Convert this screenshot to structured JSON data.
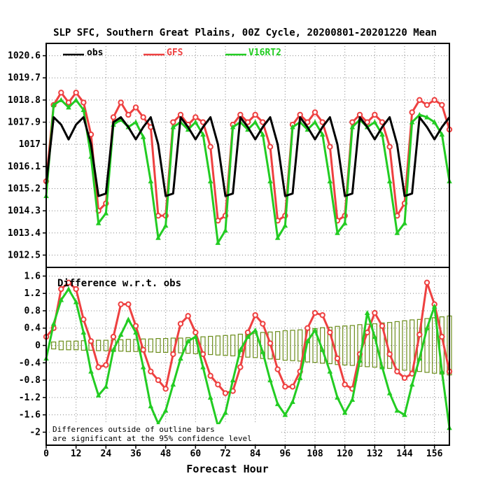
{
  "chart_data": {
    "title": "SLP SFC, Southern Great Plains, 00Z Cycle, 20200801-20201220 Mean",
    "xlabel": "Forecast Hour",
    "x_ticks": [
      0,
      12,
      24,
      36,
      48,
      60,
      72,
      84,
      96,
      108,
      120,
      132,
      144,
      156
    ],
    "x_range": [
      0,
      162
    ],
    "panels": [
      {
        "type": "line",
        "ylim": [
          1012.0,
          1021.1
        ],
        "y_ticks": [
          1012.5,
          1013.4,
          1014.3,
          1015.2,
          1016.1,
          1017,
          1017.9,
          1018.8,
          1019.7,
          1020.6
        ],
        "legend": [
          "obs",
          "GFS",
          "V16RT2"
        ],
        "x": [
          0,
          3,
          6,
          9,
          12,
          15,
          18,
          21,
          24,
          27,
          30,
          33,
          36,
          39,
          42,
          45,
          48,
          51,
          54,
          57,
          60,
          63,
          66,
          69,
          72,
          75,
          78,
          81,
          84,
          87,
          90,
          93,
          96,
          99,
          102,
          105,
          108,
          111,
          114,
          117,
          120,
          123,
          126,
          129,
          132,
          135,
          138,
          141,
          144,
          147,
          150,
          153,
          156,
          159,
          162
        ],
        "series": [
          {
            "name": "obs",
            "color": "#000000",
            "values": [
              1015.4,
              1018.1,
              1017.8,
              1017.2,
              1017.8,
              1018.1,
              1017.0,
              1014.9,
              1015.0,
              1017.9,
              1018.1,
              1017.7,
              1017.2,
              1017.7,
              1018.1,
              1017.0,
              1014.9,
              1015.0,
              1018.1,
              1017.7,
              1017.2,
              1017.7,
              1018.1,
              1017.0,
              1014.9,
              1015.0,
              1018.1,
              1017.7,
              1017.2,
              1017.7,
              1018.1,
              1017.0,
              1014.9,
              1015.0,
              1018.1,
              1017.7,
              1017.2,
              1017.7,
              1018.1,
              1017.0,
              1014.9,
              1015.0,
              1018.1,
              1017.7,
              1017.2,
              1017.7,
              1018.1,
              1017.0,
              1014.9,
              1015.0,
              1018.1,
              1017.7,
              1017.2,
              1017.7,
              1018.1
            ]
          },
          {
            "name": "GFS",
            "color": "#ee4040",
            "values": [
              1015.5,
              1018.6,
              1019.1,
              1018.7,
              1019.1,
              1018.7,
              1017.4,
              1014.3,
              1014.6,
              1018.1,
              1018.7,
              1018.2,
              1018.5,
              1018.1,
              1017.7,
              1014.1,
              1014.1,
              1017.9,
              1018.2,
              1017.8,
              1018.1,
              1017.9,
              1016.9,
              1013.9,
              1014.1,
              1017.8,
              1018.2,
              1017.9,
              1018.2,
              1017.9,
              1016.9,
              1013.9,
              1014.1,
              1017.8,
              1018.2,
              1017.9,
              1018.3,
              1017.9,
              1016.9,
              1013.9,
              1014.1,
              1017.9,
              1018.2,
              1017.9,
              1018.2,
              1017.9,
              1016.9,
              1014.1,
              1014.6,
              1018.3,
              1018.8,
              1018.6,
              1018.8,
              1018.6,
              1017.6
            ]
          },
          {
            "name": "V16RT2",
            "color": "#22cc22",
            "values": [
              1014.9,
              1018.6,
              1018.8,
              1018.5,
              1018.8,
              1018.4,
              1016.5,
              1013.8,
              1014.2,
              1017.8,
              1018.0,
              1017.7,
              1017.9,
              1017.3,
              1015.5,
              1013.2,
              1013.7,
              1017.7,
              1017.9,
              1017.6,
              1017.9,
              1017.4,
              1015.5,
              1013.0,
              1013.5,
              1017.7,
              1017.9,
              1017.6,
              1017.9,
              1017.4,
              1015.5,
              1013.2,
              1013.7,
              1017.7,
              1017.9,
              1017.6,
              1017.9,
              1017.4,
              1015.5,
              1013.4,
              1013.8,
              1017.7,
              1018.0,
              1017.7,
              1017.9,
              1017.4,
              1015.5,
              1013.4,
              1013.8,
              1017.9,
              1018.2,
              1018.1,
              1017.9,
              1017.4,
              1015.5
            ]
          }
        ]
      },
      {
        "type": "line",
        "title": "Difference w.r.t. obs",
        "ylim": [
          -2.3,
          1.8
        ],
        "y_ticks": [
          -2,
          -1.6,
          -1.2,
          -0.8,
          -0.4,
          0,
          0.4,
          0.8,
          1.2,
          1.6
        ],
        "note": [
          "Differences outside of outline bars",
          "are significant at the 95% confidence level"
        ],
        "x": [
          0,
          3,
          6,
          9,
          12,
          15,
          18,
          21,
          24,
          27,
          30,
          33,
          36,
          39,
          42,
          45,
          48,
          51,
          54,
          57,
          60,
          63,
          66,
          69,
          72,
          75,
          78,
          81,
          84,
          87,
          90,
          93,
          96,
          99,
          102,
          105,
          108,
          111,
          114,
          117,
          120,
          123,
          126,
          129,
          132,
          135,
          138,
          141,
          144,
          147,
          150,
          153,
          156,
          159,
          162
        ],
        "series": [
          {
            "name": "GFS",
            "color": "#ee4040",
            "values": [
              0.2,
              0.4,
              1.3,
              1.45,
              1.3,
              0.6,
              0.1,
              -0.5,
              -0.45,
              0.2,
              0.95,
              0.95,
              0.45,
              -0.1,
              -0.6,
              -0.8,
              -1.0,
              -0.2,
              0.5,
              0.68,
              0.3,
              -0.2,
              -0.7,
              -0.9,
              -1.1,
              -1.05,
              -0.5,
              0.3,
              0.7,
              0.5,
              0.05,
              -0.55,
              -0.95,
              -0.95,
              -0.6,
              0.4,
              0.75,
              0.7,
              0.3,
              -0.3,
              -0.9,
              -1.0,
              -0.2,
              0.3,
              0.75,
              0.45,
              -0.2,
              -0.6,
              -0.75,
              -0.65,
              0.25,
              1.45,
              0.95,
              0.2,
              -0.6
            ]
          },
          {
            "name": "V16RT2",
            "color": "#22cc22",
            "values": [
              -0.3,
              0.5,
              1.05,
              1.3,
              1.0,
              0.3,
              -0.6,
              -1.15,
              -0.95,
              -0.1,
              0.25,
              0.6,
              0.3,
              -0.5,
              -1.4,
              -1.8,
              -1.5,
              -0.9,
              -0.3,
              0.1,
              0.2,
              -0.5,
              -1.2,
              -1.85,
              -1.55,
              -0.8,
              -0.1,
              0.2,
              0.35,
              -0.15,
              -0.8,
              -1.35,
              -1.6,
              -1.3,
              -0.75,
              0.1,
              0.35,
              -0.1,
              -0.6,
              -1.2,
              -1.55,
              -1.25,
              -0.35,
              0.75,
              0.2,
              -0.5,
              -1.1,
              -1.5,
              -1.6,
              -0.9,
              -0.3,
              0.4,
              0.9,
              -0.6,
              -1.9
            ]
          },
          {
            "name": "significance-bars",
            "color": "#6a8c1a",
            "values": [
              0.08,
              0.08,
              0.1,
              0.1,
              0.1,
              0.11,
              0.11,
              0.12,
              0.12,
              0.13,
              0.13,
              0.14,
              0.14,
              0.15,
              0.15,
              0.16,
              0.16,
              0.17,
              0.17,
              0.18,
              0.19,
              0.2,
              0.21,
              0.22,
              0.23,
              0.24,
              0.26,
              0.27,
              0.28,
              0.3,
              0.31,
              0.32,
              0.34,
              0.35,
              0.36,
              0.38,
              0.39,
              0.41,
              0.42,
              0.44,
              0.45,
              0.46,
              0.48,
              0.49,
              0.5,
              0.52,
              0.53,
              0.55,
              0.57,
              0.59,
              0.6,
              0.62,
              0.64,
              0.66,
              0.68
            ]
          }
        ]
      }
    ]
  }
}
